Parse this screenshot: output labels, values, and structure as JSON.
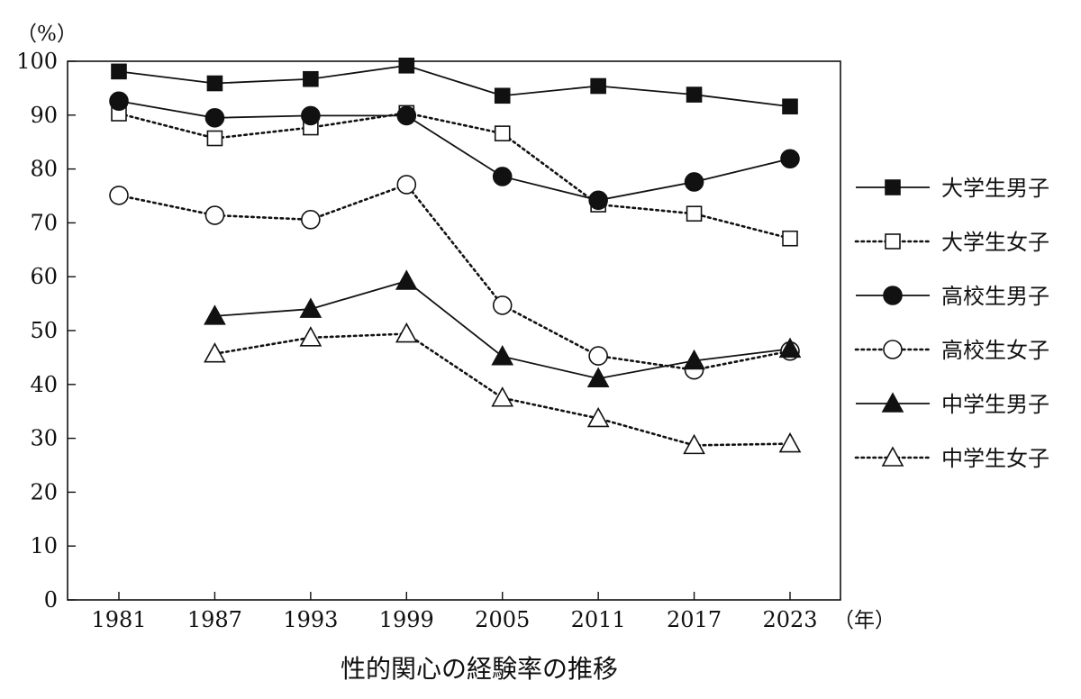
{
  "chart_data": {
    "type": "line",
    "title": "性的関心の経験率の推移",
    "y_unit": "（%）",
    "x_unit": "（年）",
    "x": [
      1981,
      1987,
      1993,
      1999,
      2005,
      2011,
      2017,
      2023
    ],
    "ylim": [
      0,
      100
    ],
    "yticks": [
      0,
      10,
      20,
      30,
      40,
      50,
      60,
      70,
      80,
      90,
      100
    ],
    "grid": false,
    "legend_position": "right",
    "series": [
      {
        "name": "大学生男子",
        "line": "solid",
        "marker": "square",
        "filled": true,
        "values": [
          98.1,
          95.9,
          96.7,
          99.2,
          93.6,
          95.4,
          93.8,
          91.6
        ]
      },
      {
        "name": "大学生女子",
        "line": "dotted",
        "marker": "square",
        "filled": false,
        "values": [
          90.3,
          85.7,
          87.7,
          90.4,
          86.6,
          73.4,
          71.7,
          67.1
        ]
      },
      {
        "name": "高校生男子",
        "line": "solid",
        "marker": "circle",
        "filled": true,
        "values": [
          92.6,
          89.5,
          89.9,
          89.9,
          78.6,
          74.2,
          77.6,
          81.9
        ]
      },
      {
        "name": "高校生女子",
        "line": "dotted",
        "marker": "circle",
        "filled": false,
        "values": [
          75.1,
          71.4,
          70.6,
          77.1,
          54.7,
          45.3,
          42.7,
          46.2
        ]
      },
      {
        "name": "中学生男子",
        "line": "solid",
        "marker": "triangle",
        "filled": true,
        "values": [
          null,
          52.7,
          54.0,
          59.2,
          45.2,
          41.1,
          44.4,
          46.6
        ]
      },
      {
        "name": "中学生女子",
        "line": "dotted",
        "marker": "triangle",
        "filled": false,
        "values": [
          null,
          45.7,
          48.7,
          49.4,
          37.5,
          33.7,
          28.7,
          29.0
        ]
      }
    ]
  }
}
